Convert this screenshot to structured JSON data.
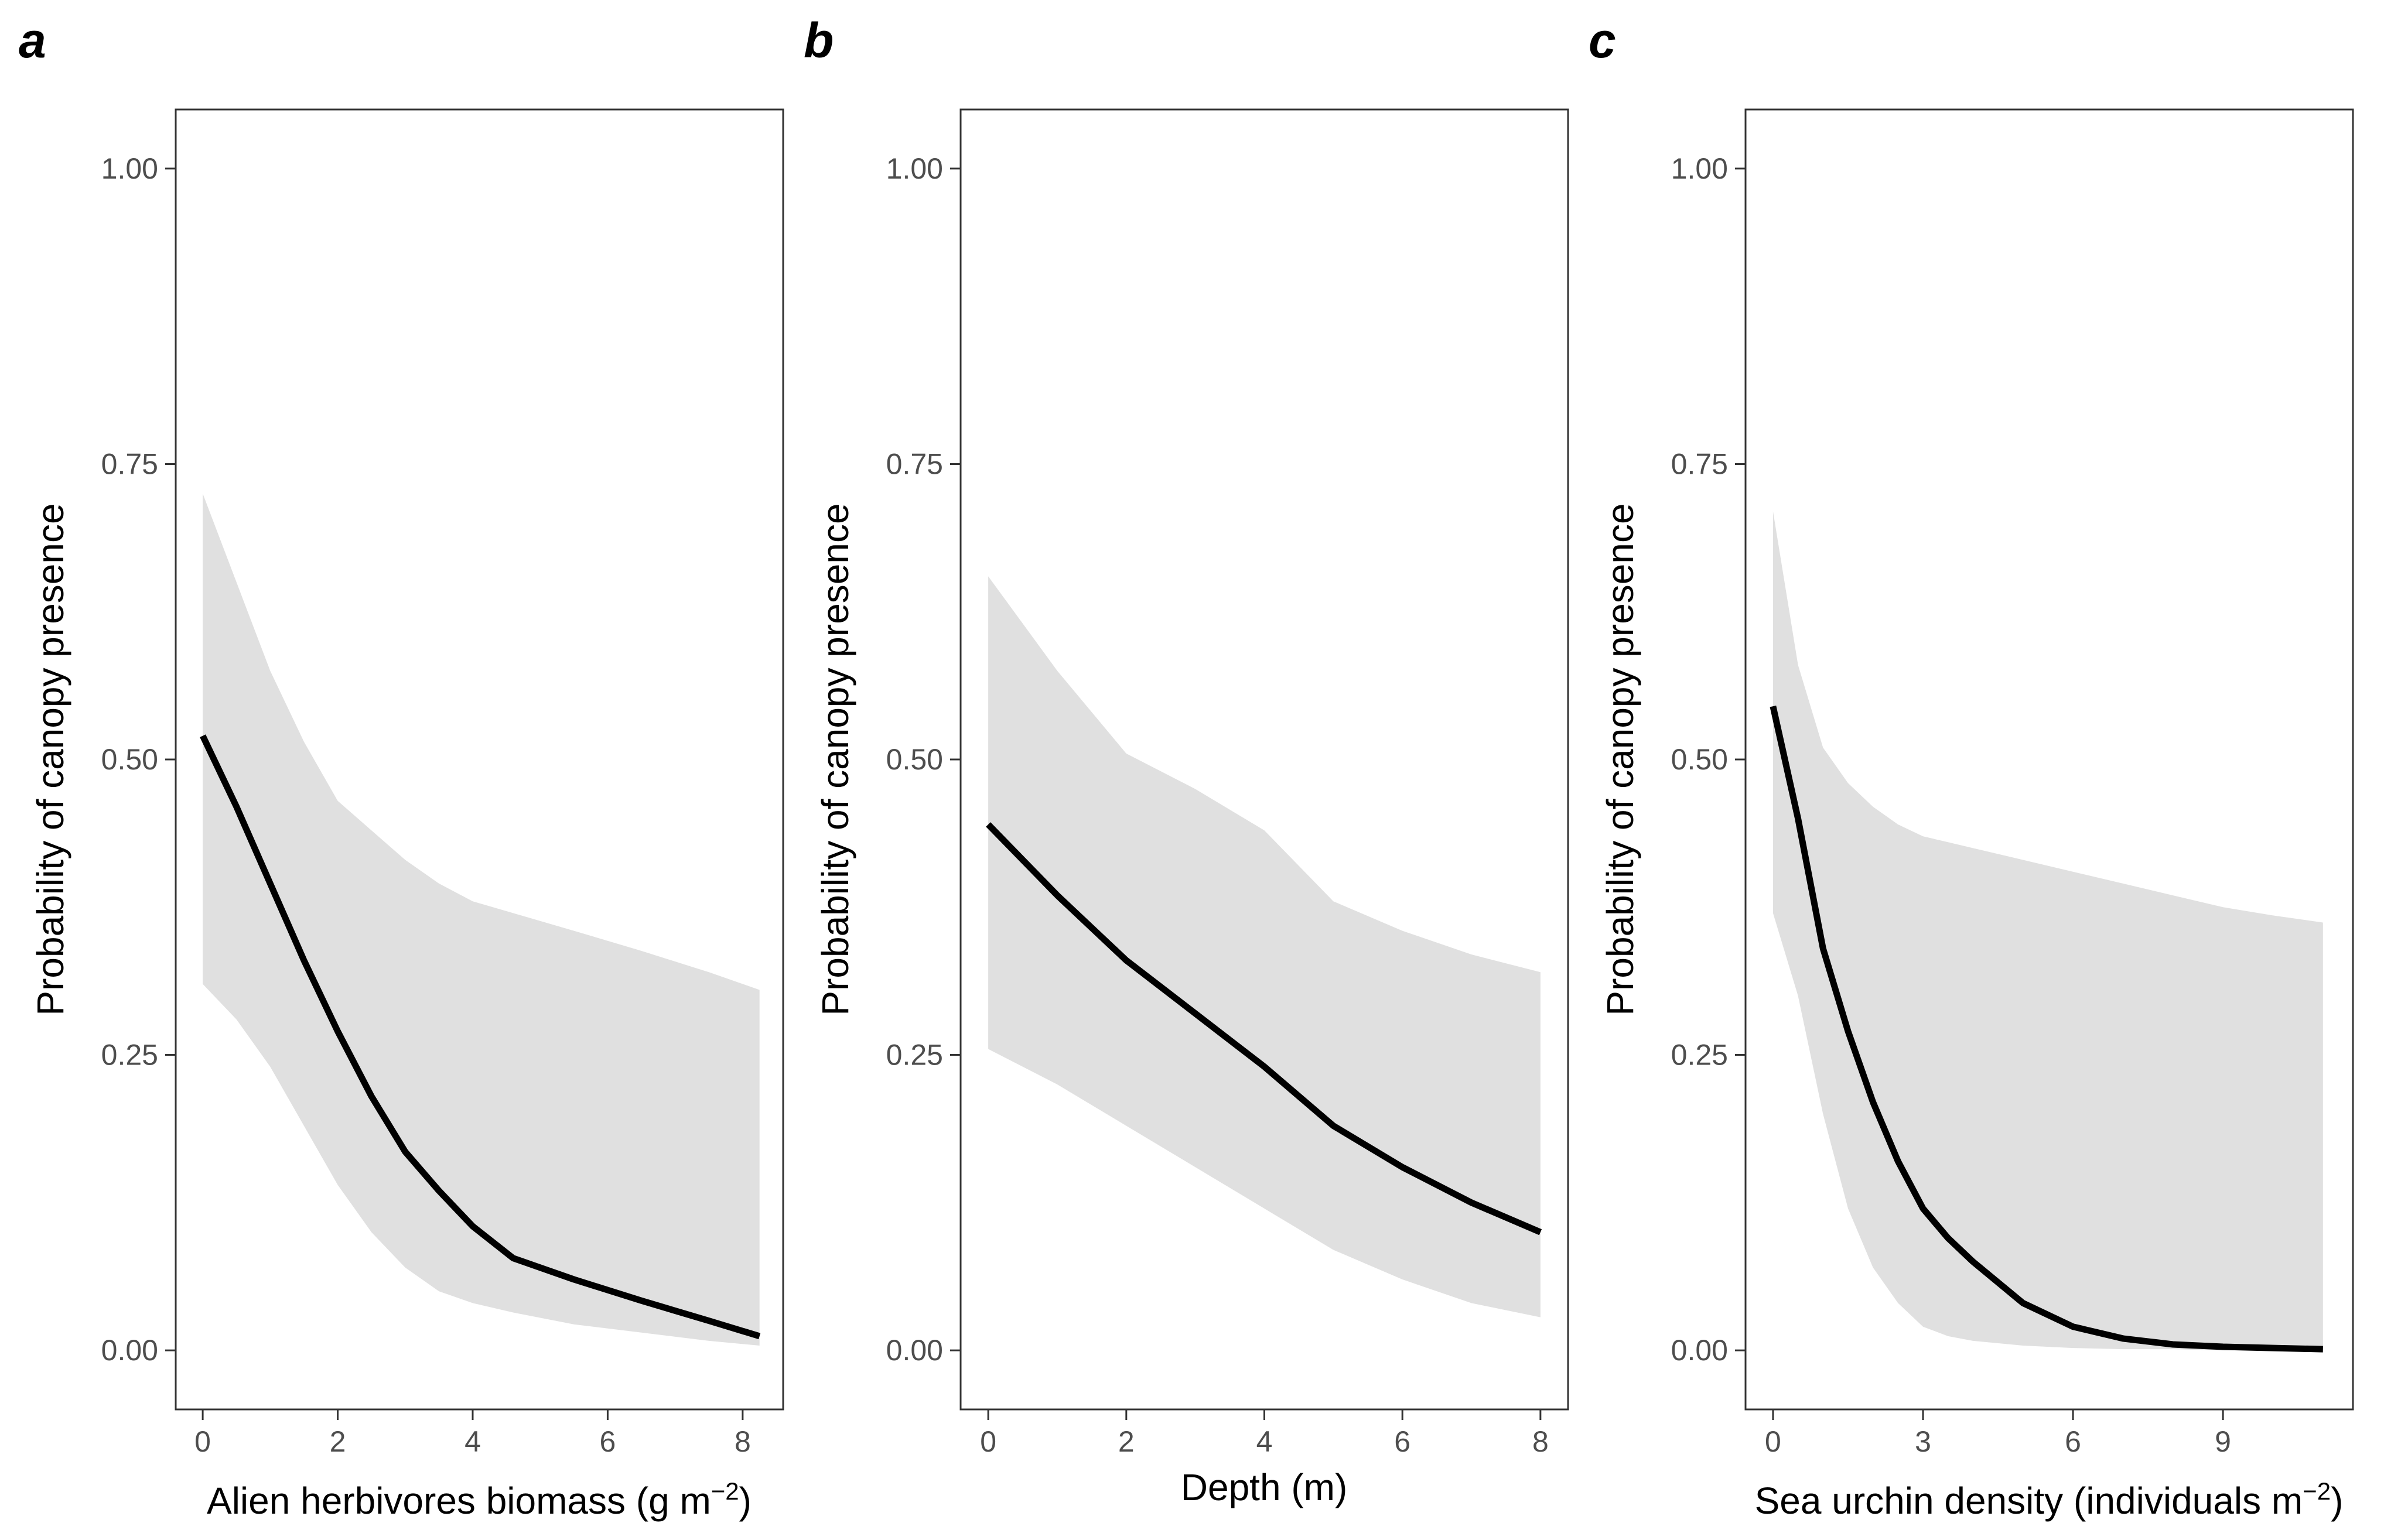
{
  "colors": {
    "line": "#000000",
    "ribbon": "#e0e0e0",
    "frame": "#333333",
    "tick_text": "#4d4d4d"
  },
  "chart_data": [
    {
      "type": "line",
      "panel_label": "a",
      "title": "",
      "xlabel": "Alien herbivores biomass (g m",
      "xlabel_sup": "−2",
      "xlabel_end": ")",
      "ylabel": "Probability of canopy presence",
      "xlim": [
        -0.4,
        8.6
      ],
      "ylim": [
        -0.05,
        1.05
      ],
      "xticks": [
        0,
        2,
        4,
        6,
        8
      ],
      "xtick_labels": [
        "0",
        "2",
        "4",
        "6",
        "8"
      ],
      "yticks": [
        0,
        0.25,
        0.5,
        0.75,
        1
      ],
      "ytick_labels": [
        "0.00",
        "0.25",
        "0.50",
        "0.75",
        "1.00"
      ],
      "grid": false,
      "series": [
        {
          "name": "fit",
          "x": [
            0,
            0.5,
            1,
            1.5,
            2,
            2.5,
            3,
            3.5,
            4,
            4.6,
            5.5,
            6.5,
            7.5,
            8.25
          ],
          "y": [
            0.52,
            0.46,
            0.395,
            0.33,
            0.27,
            0.215,
            0.168,
            0.135,
            0.105,
            0.078,
            0.06,
            0.042,
            0.025,
            0.012
          ],
          "lower": [
            0.31,
            0.28,
            0.24,
            0.19,
            0.14,
            0.1,
            0.07,
            0.05,
            0.04,
            0.032,
            0.022,
            0.015,
            0.008,
            0.004
          ],
          "upper": [
            0.725,
            0.65,
            0.575,
            0.515,
            0.465,
            0.44,
            0.415,
            0.395,
            0.38,
            0.37,
            0.355,
            0.338,
            0.32,
            0.305
          ]
        }
      ]
    },
    {
      "type": "line",
      "panel_label": "b",
      "title": "",
      "xlabel": "Depth (m)",
      "ylabel": "Probability of canopy presence",
      "xlim": [
        -0.4,
        8.4
      ],
      "ylim": [
        -0.05,
        1.05
      ],
      "xticks": [
        0,
        2,
        4,
        6,
        8
      ],
      "xtick_labels": [
        "0",
        "2",
        "4",
        "6",
        "8"
      ],
      "yticks": [
        0,
        0.25,
        0.5,
        0.75,
        1
      ],
      "ytick_labels": [
        "0.00",
        "0.25",
        "0.50",
        "0.75",
        "1.00"
      ],
      "grid": false,
      "series": [
        {
          "name": "fit",
          "x": [
            0,
            1,
            2,
            3,
            4,
            5,
            6,
            7,
            8
          ],
          "y": [
            0.445,
            0.385,
            0.33,
            0.285,
            0.24,
            0.19,
            0.155,
            0.125,
            0.1
          ],
          "lower": [
            0.255,
            0.225,
            0.19,
            0.155,
            0.12,
            0.085,
            0.06,
            0.04,
            0.028
          ],
          "upper": [
            0.655,
            0.575,
            0.505,
            0.475,
            0.44,
            0.38,
            0.355,
            0.335,
            0.32
          ]
        }
      ]
    },
    {
      "type": "line",
      "panel_label": "c",
      "title": "",
      "xlabel": "Sea urchin density (individuals m",
      "xlabel_sup": "−2",
      "xlabel_end": ")",
      "ylabel": "Probability of canopy presence",
      "xlim": [
        -0.55,
        11.6
      ],
      "ylim": [
        -0.05,
        1.05
      ],
      "xticks": [
        0,
        3,
        6,
        9
      ],
      "xtick_labels": [
        "0",
        "3",
        "6",
        "9"
      ],
      "yticks": [
        0,
        0.25,
        0.5,
        0.75,
        1
      ],
      "ytick_labels": [
        "0.00",
        "0.25",
        "0.50",
        "0.75",
        "1.00"
      ],
      "grid": false,
      "series": [
        {
          "name": "fit",
          "x": [
            0,
            0.5,
            1,
            1.5,
            2,
            2.5,
            3,
            3.5,
            4,
            5,
            6,
            7,
            8,
            9,
            10,
            11
          ],
          "y": [
            0.545,
            0.45,
            0.34,
            0.27,
            0.21,
            0.16,
            0.12,
            0.095,
            0.075,
            0.04,
            0.02,
            0.01,
            0.005,
            0.003,
            0.002,
            0.001
          ],
          "lower": [
            0.37,
            0.3,
            0.2,
            0.12,
            0.07,
            0.04,
            0.02,
            0.012,
            0.008,
            0.004,
            0.002,
            0.001,
            0.001,
            0.0,
            0.0,
            0.0
          ],
          "upper": [
            0.71,
            0.58,
            0.51,
            0.48,
            0.46,
            0.445,
            0.435,
            0.43,
            0.425,
            0.415,
            0.405,
            0.395,
            0.385,
            0.375,
            0.368,
            0.362
          ]
        }
      ]
    }
  ]
}
